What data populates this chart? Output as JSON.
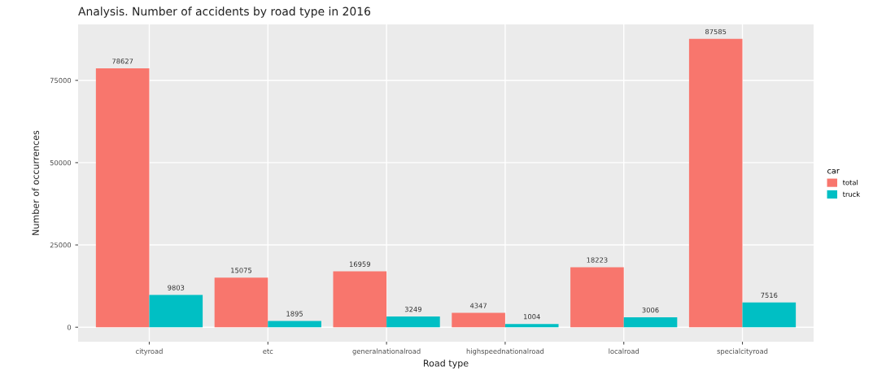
{
  "chart_data": {
    "type": "bar",
    "title": "Analysis. Number of accidents by road type in 2016",
    "xlabel": "Road type",
    "ylabel": "Number of occurrences",
    "legend_title": "car",
    "categories": [
      "cityroad",
      "etc",
      "generalnationalroad",
      "highspeednationalroad",
      "localroad",
      "specialcityroad"
    ],
    "series": [
      {
        "name": "total",
        "color": "#f8766d",
        "values": [
          78627,
          15075,
          16959,
          4347,
          18223,
          87585
        ]
      },
      {
        "name": "truck",
        "color": "#00bfc4",
        "values": [
          9803,
          1895,
          3249,
          1004,
          3006,
          7516
        ]
      }
    ],
    "ylim": [
      -4400,
      92000
    ],
    "yticks": [
      0,
      25000,
      50000,
      75000
    ],
    "data_labels": true,
    "grid": true,
    "legend": "right"
  }
}
